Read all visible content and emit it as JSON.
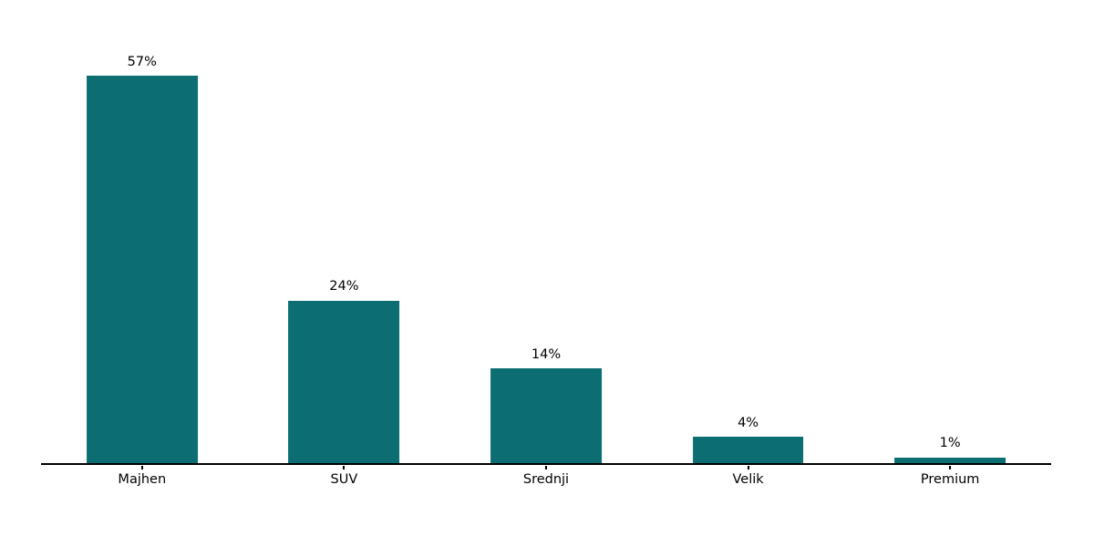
{
  "chart_data": {
    "type": "bar",
    "categories": [
      "Majhen",
      "SUV",
      "Srednji",
      "Velik",
      "Premium"
    ],
    "values": [
      57,
      24,
      14,
      4,
      1
    ],
    "value_labels": [
      "57%",
      "24%",
      "14%",
      "4%",
      "1%"
    ],
    "title": "",
    "xlabel": "",
    "ylabel": "",
    "ylim": [
      0,
      60
    ],
    "grid": false,
    "legend_position": "none",
    "layout_hints": {
      "bottom_spine_only": true,
      "value_labels_above_bars": true,
      "ticks_below_axis": true
    },
    "colors": {
      "bar": "#0c6e73",
      "axis": "#000000",
      "text": "#000000",
      "background": "#ffffff"
    }
  }
}
